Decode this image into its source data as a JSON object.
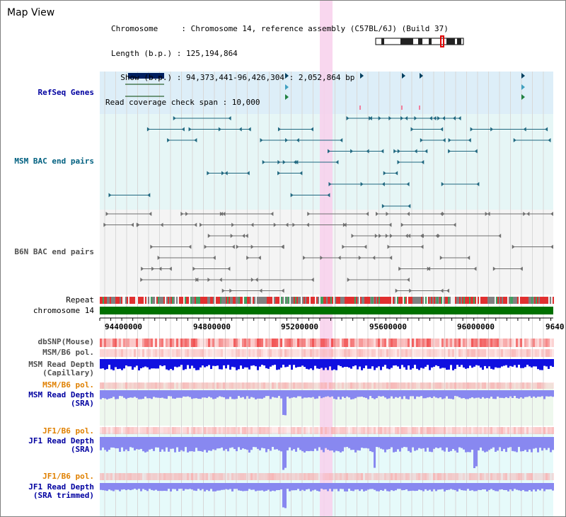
{
  "page": {
    "title": "Map View"
  },
  "info": {
    "chromosome_line": "Chromosome     : Chromosome 14, reference assembly (C57BL/6J) (Build 37)",
    "length_line": "Length (b.p.) : 125,194,864",
    "show_line": "  Show (b.p.) : 94,373,441-96,426,304 : 2,052,864 bp",
    "coverage_line": "Read coverage check span : 10,000"
  },
  "tracks": {
    "refseq": "RefSeq Genes",
    "msm_bac": "MSM BAC end pairs",
    "b6n_bac": "B6N BAC end pairs",
    "repeat": "Repeat",
    "chromosome": "chromosome 14",
    "dbsnp": "dbSNP(Mouse)",
    "msm_b6_pol_1": "MSM/B6 pol.",
    "msm_read_depth_cap": "MSM Read Depth\n(Capillary)",
    "msm_b6_pol_2": "MSM/B6 pol.",
    "msm_read_depth_sra": "MSM Read Depth\n(SRA)",
    "jf1_b6_pol_1": "JF1/B6 pol.",
    "jf1_read_depth_sra": "JF1 Read Depth\n(SRA)",
    "jf1_b6_pol_2": "JF1/B6 pol.",
    "jf1_read_depth_trim": "JF1 Read Depth\n(SRA trimmed)"
  },
  "ruler": {
    "ticks": [
      "94400000",
      "94800000",
      "95200000",
      "95600000",
      "96000000",
      "9640"
    ]
  },
  "colors": {
    "refseq_bg": "#ddeef8",
    "msm_bg": "#e6f6f6",
    "b6n_bg": "#f4f4f4",
    "highlight": "#f8d0ec",
    "chromosome_bar": "#007000",
    "depth_blue": "#1010e0",
    "depth_light": "#8888f0",
    "snp_red": "#f04040",
    "pol_pink": "#f8b0b0"
  }
}
